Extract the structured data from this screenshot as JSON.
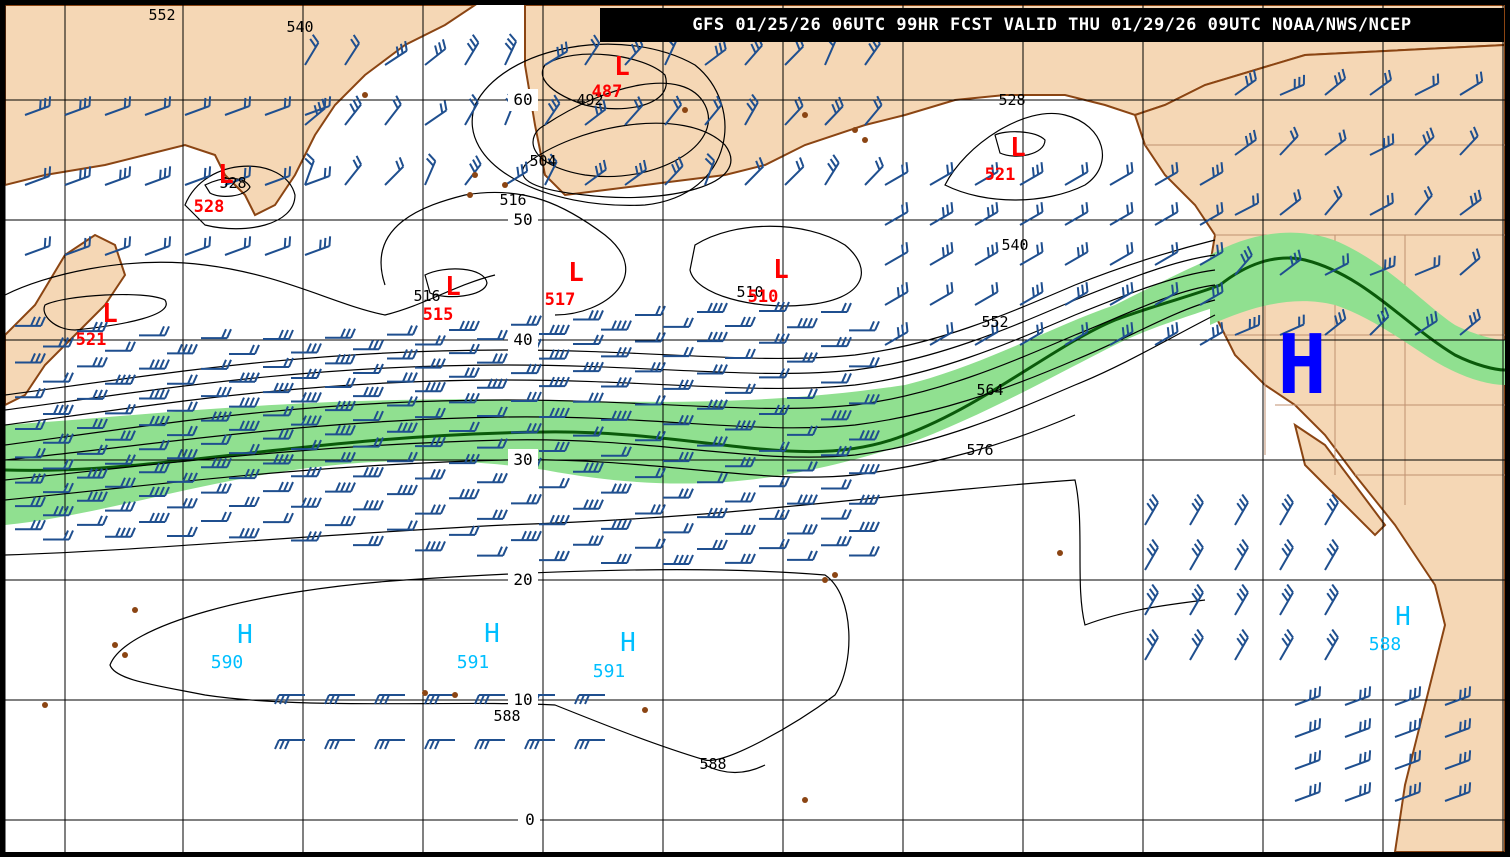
{
  "header": {
    "title": "GFS 01/25/26 06UTC 99HR FCST VALID THU 01/29/26 09UTC NOAA/NWS/NCEP"
  },
  "map": {
    "colors": {
      "ocean": "#ffffff",
      "land": "#f5d7b5",
      "coast": "#8b4513",
      "grid": "#000000",
      "contour": "#000000",
      "jet_fill": "#90e090",
      "jet_axis": "#0a5a0a",
      "wind_barb": "#1f4f8f",
      "low_color": "#ff0000",
      "high_color": "#00bfff",
      "big_high_color": "#0000ff"
    },
    "lat_labels": [
      "60",
      "50",
      "40",
      "30",
      "20",
      "10",
      "0"
    ],
    "contour_labels": [
      "552",
      "540",
      "528",
      "516",
      "504",
      "492",
      "528",
      "540",
      "552",
      "564",
      "576",
      "516",
      "510",
      "588",
      "588"
    ],
    "lows": [
      {
        "letter": "L",
        "value": "487"
      },
      {
        "letter": "L",
        "value": "528"
      },
      {
        "letter": "L",
        "value": "521"
      },
      {
        "letter": "L",
        "value": "521"
      },
      {
        "letter": "L",
        "value": "515"
      },
      {
        "letter": "L",
        "value": "517"
      },
      {
        "letter": "L",
        "value": "510"
      }
    ],
    "highs": [
      {
        "letter": "H",
        "value": "590"
      },
      {
        "letter": "H",
        "value": "591"
      },
      {
        "letter": "H",
        "value": "591"
      },
      {
        "letter": "H",
        "value": "588"
      }
    ],
    "big_high": {
      "letter": "H"
    }
  }
}
